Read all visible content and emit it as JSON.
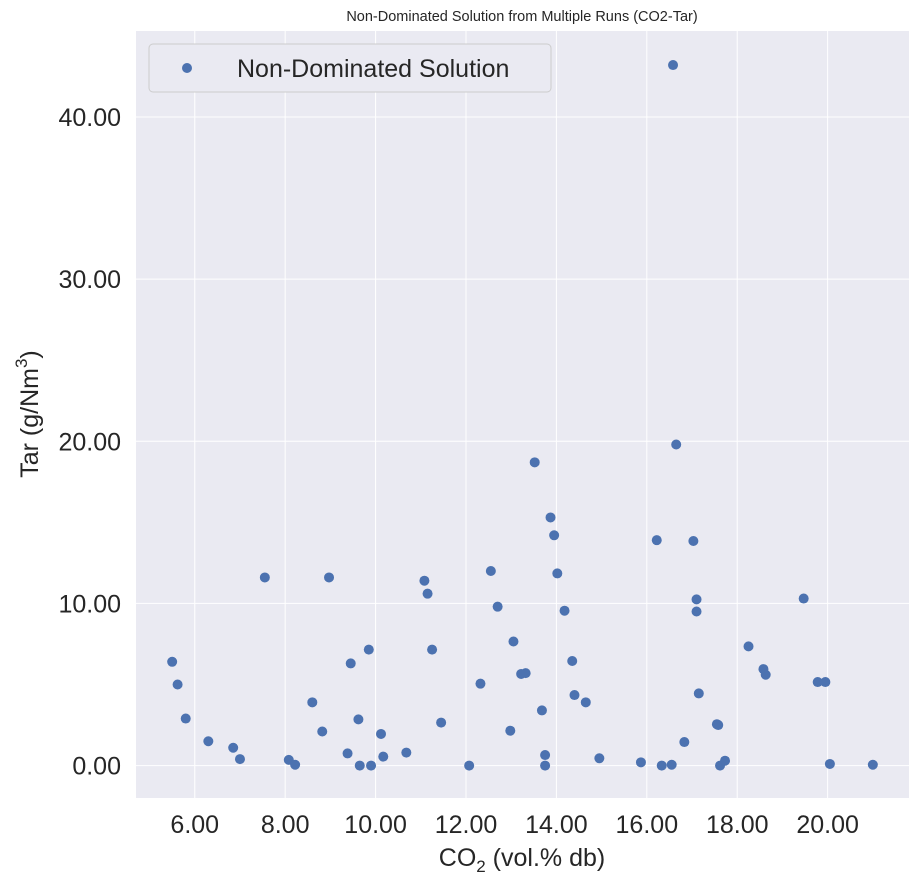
{
  "chart_data": {
    "type": "scatter",
    "title": "Non-Dominated Solution from Multiple Runs (CO2-Tar)",
    "xlabel": {
      "prefix": "CO",
      "subscript": "2",
      "suffix": " (vol.% db)"
    },
    "ylabel": {
      "prefix": "Tar (g/Nm",
      "superscript": "3",
      "suffix": ")"
    },
    "xlim": [
      4.7,
      21.8
    ],
    "ylim": [
      -2.0,
      45.3
    ],
    "xticks": [
      6,
      8,
      10,
      12,
      14,
      16,
      18,
      20
    ],
    "xtick_labels": [
      "6.00",
      "8.00",
      "10.00",
      "12.00",
      "14.00",
      "16.00",
      "18.00",
      "20.00"
    ],
    "yticks": [
      0,
      10,
      20,
      30,
      40
    ],
    "ytick_labels": [
      "0.00",
      "10.00",
      "20.00",
      "30.00",
      "40.00"
    ],
    "grid": true,
    "legend_placement": "top-left",
    "colors": {
      "background": "#eaeaf2",
      "grid": "#ffffff",
      "point": "#4c72b0"
    },
    "series": [
      {
        "name": "Non-Dominated Solution",
        "points": [
          [
            5.5,
            6.4
          ],
          [
            5.62,
            5.0
          ],
          [
            5.8,
            2.9
          ],
          [
            6.3,
            1.5
          ],
          [
            6.85,
            1.1
          ],
          [
            7.0,
            0.4
          ],
          [
            7.55,
            11.6
          ],
          [
            8.08,
            0.35
          ],
          [
            8.22,
            0.05
          ],
          [
            8.6,
            3.9
          ],
          [
            8.82,
            2.1
          ],
          [
            8.97,
            11.6
          ],
          [
            9.38,
            0.75
          ],
          [
            9.45,
            6.3
          ],
          [
            9.62,
            2.85
          ],
          [
            9.65,
            0.0
          ],
          [
            9.85,
            7.15
          ],
          [
            9.9,
            0.0
          ],
          [
            10.12,
            1.95
          ],
          [
            10.17,
            0.55
          ],
          [
            10.68,
            0.8
          ],
          [
            11.08,
            11.4
          ],
          [
            11.15,
            10.6
          ],
          [
            11.25,
            7.15
          ],
          [
            11.45,
            2.65
          ],
          [
            12.07,
            0.0
          ],
          [
            12.32,
            5.05
          ],
          [
            12.55,
            12.0
          ],
          [
            12.7,
            9.8
          ],
          [
            12.98,
            2.15
          ],
          [
            13.05,
            7.65
          ],
          [
            13.22,
            5.65
          ],
          [
            13.32,
            5.7
          ],
          [
            13.52,
            18.7
          ],
          [
            13.68,
            3.4
          ],
          [
            13.75,
            0.65
          ],
          [
            13.75,
            0.0
          ],
          [
            13.87,
            15.3
          ],
          [
            13.95,
            14.2
          ],
          [
            14.02,
            11.85
          ],
          [
            14.18,
            9.55
          ],
          [
            14.35,
            6.45
          ],
          [
            14.4,
            4.35
          ],
          [
            14.65,
            3.9
          ],
          [
            14.95,
            0.45
          ],
          [
            15.87,
            0.2
          ],
          [
            16.22,
            13.9
          ],
          [
            16.33,
            0.0
          ],
          [
            16.55,
            0.05
          ],
          [
            16.58,
            43.2
          ],
          [
            16.65,
            19.8
          ],
          [
            16.83,
            1.45
          ],
          [
            17.03,
            13.85
          ],
          [
            17.1,
            10.25
          ],
          [
            17.1,
            9.5
          ],
          [
            17.15,
            4.45
          ],
          [
            17.55,
            2.55
          ],
          [
            17.58,
            2.5
          ],
          [
            17.62,
            0.0
          ],
          [
            17.73,
            0.3
          ],
          [
            18.25,
            7.35
          ],
          [
            18.58,
            5.95
          ],
          [
            18.63,
            5.6
          ],
          [
            19.47,
            10.3
          ],
          [
            19.78,
            5.15
          ],
          [
            19.95,
            5.15
          ],
          [
            20.05,
            0.1
          ],
          [
            21.0,
            0.05
          ]
        ]
      }
    ]
  }
}
